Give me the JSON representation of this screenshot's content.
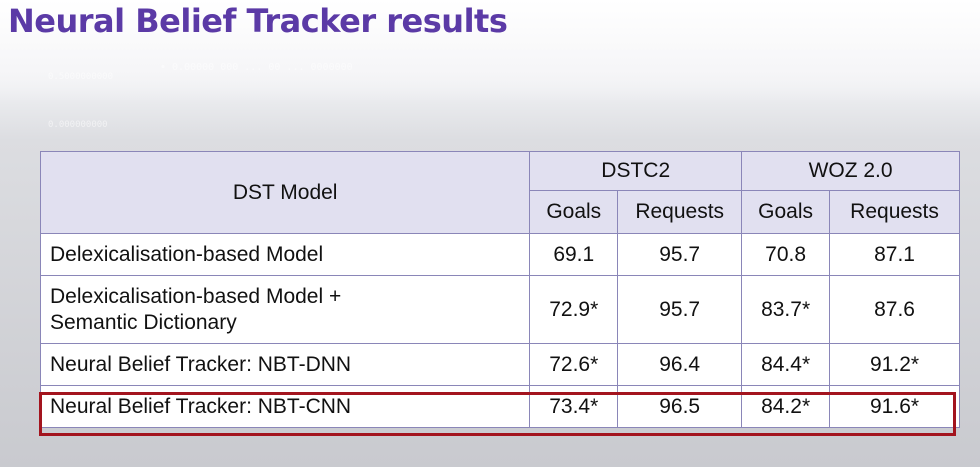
{
  "title": "Neural Belief Tracker results",
  "ghost_text": [
    "0.5000000000",
    "0.000000000",
    "• 0.00000 000 ... 00 ... 0000000"
  ],
  "table": {
    "model_header": "DST Model",
    "groups": [
      "DSTC2",
      "WOZ 2.0"
    ],
    "subheaders": [
      "Goals",
      "Requests",
      "Goals",
      "Requests"
    ],
    "rows": [
      {
        "model": "Delexicalisation-based Model",
        "values": [
          "69.1",
          "95.7",
          "70.8",
          "87.1"
        ],
        "bold": [
          false,
          false,
          false,
          false
        ]
      },
      {
        "model_line1": "Delexicalisation-based Model +",
        "model_line2": "Semantic Dictionary",
        "values": [
          "72.9*",
          "95.7",
          "83.7*",
          "87.6"
        ],
        "bold": [
          false,
          false,
          false,
          false
        ]
      },
      {
        "model": "Neural Belief Tracker: NBT-DNN",
        "values": [
          "72.6*",
          "96.4",
          "84.4*",
          "91.2*"
        ],
        "bold": [
          false,
          false,
          true,
          false
        ]
      },
      {
        "model": "Neural Belief Tracker: NBT-CNN",
        "values": [
          "73.4*",
          "96.5",
          "84.2*",
          "91.6*"
        ],
        "bold": [
          true,
          true,
          false,
          true
        ]
      }
    ]
  },
  "highlight_color": "#a3141e",
  "title_color": "#5b3aa6",
  "border_color": "#8a86b8",
  "header_fill": "#e1e0f0"
}
